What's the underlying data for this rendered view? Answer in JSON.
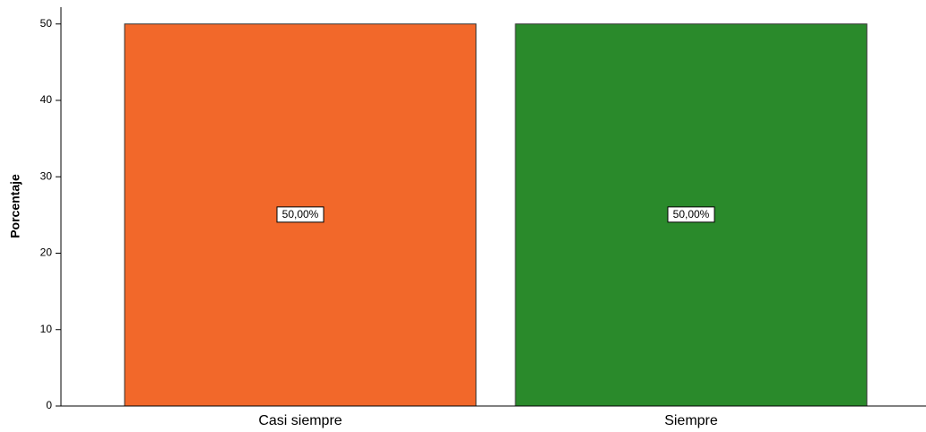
{
  "chart_data": {
    "type": "bar",
    "y_label": "Porcentaje",
    "categories": [
      "Casi siempre",
      "Siempre"
    ],
    "values": [
      50,
      50
    ],
    "value_labels": [
      "50,00%",
      "50,00%"
    ],
    "colors": [
      "#f2682a",
      "#2a8a2b"
    ],
    "ylim": [
      0,
      52.2
    ],
    "yticks": [
      0,
      10,
      20,
      30,
      40,
      50
    ]
  }
}
